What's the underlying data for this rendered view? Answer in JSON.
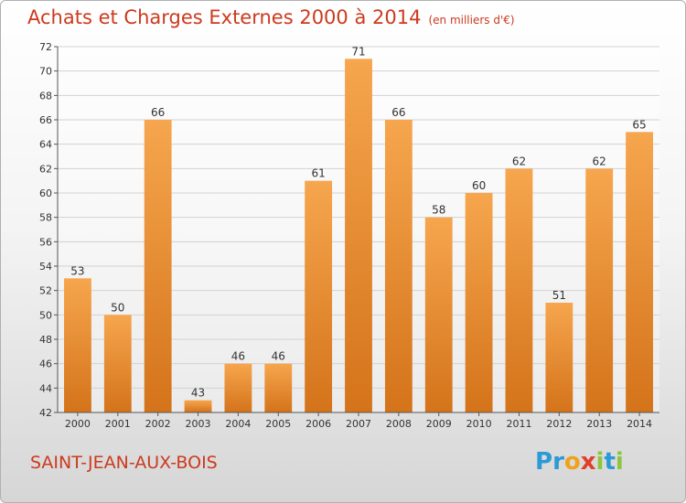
{
  "title": "Achats et Charges Externes 2000 à 2014",
  "unit": "(en milliers d'€)",
  "commune": "SAINT-JEAN-AUX-BOIS",
  "logo": {
    "letters": [
      "P",
      "r",
      "o",
      "x",
      "i",
      "t",
      "i"
    ],
    "colors": [
      "#2c9ad6",
      "#2c9ad6",
      "#f0a21c",
      "#e0402a",
      "#8cc63f",
      "#2c9ad6",
      "#8cc63f"
    ]
  },
  "colors": {
    "bar_light": "#f6a64e",
    "bar_dark": "#d4731a",
    "title": "#cc3a1e",
    "grid": "#d2d2d2"
  },
  "chart_data": {
    "type": "bar",
    "categories": [
      "2000",
      "2001",
      "2002",
      "2003",
      "2004",
      "2005",
      "2006",
      "2007",
      "2008",
      "2009",
      "2010",
      "2011",
      "2012",
      "2013",
      "2014"
    ],
    "values": [
      53,
      50,
      66,
      43,
      46,
      46,
      61,
      71,
      66,
      58,
      60,
      62,
      51,
      62,
      65
    ],
    "ylim": [
      42,
      72
    ],
    "yticks": [
      42,
      44,
      46,
      48,
      50,
      52,
      54,
      56,
      58,
      60,
      62,
      64,
      66,
      68,
      70,
      72
    ],
    "grid": true
  }
}
